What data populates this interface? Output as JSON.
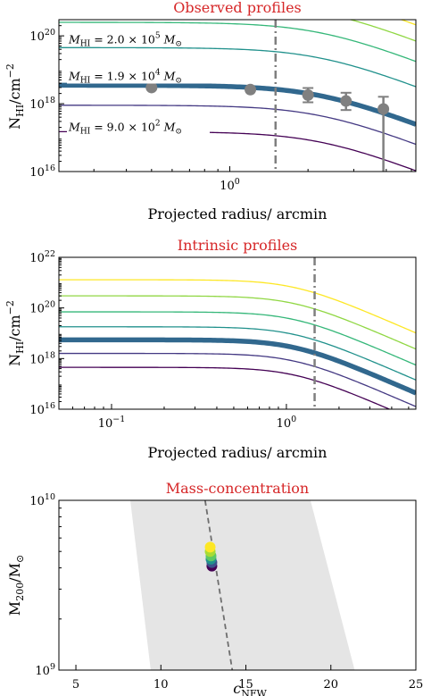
{
  "chart_data": [
    {
      "type": "line",
      "title": "Observed profiles",
      "xlabel": "Projected radius/ arcmin",
      "ylabel": "N_HI/cm^-2",
      "x_scale": "log",
      "y_scale": "log",
      "xlim": [
        0.22,
        5.2
      ],
      "ylim": [
        1e+16,
        3e+20
      ],
      "x_ticks": [
        {
          "value": 1,
          "label": "10^0"
        }
      ],
      "y_ticks": [
        {
          "value": 1e+16,
          "label": "10^16"
        },
        {
          "value": 1e+18,
          "label": "10^18"
        },
        {
          "value": 1e+20,
          "label": "10^20"
        }
      ],
      "annotations": [
        {
          "text": "M_HI = 2.0 × 10^5 M_⊙",
          "x": 0.24,
          "y": 6e+19
        },
        {
          "text": "M_HI = 1.9 × 10^4 M_⊙",
          "x": 0.24,
          "y": 5e+18
        },
        {
          "text": "M_HI = 9.0 × 10^2 M_⊙",
          "x": 0.24,
          "y": 1.6e+17
        }
      ],
      "vline": {
        "x": 1.5,
        "style": "dash-dot",
        "color": "#7f7f7f"
      },
      "series": [
        {
          "central": 3e+21,
          "rs": 2.2,
          "color": "#fde725",
          "width": 1.3
        },
        {
          "central": 1e+21,
          "rs": 2.2,
          "color": "#90d743",
          "width": 1.3
        },
        {
          "central": 2.5e+20,
          "rs": 2.2,
          "color": "#35b779",
          "width": 1.3
        },
        {
          "central": 4.5e+19,
          "rs": 2.2,
          "color": "#21918c",
          "width": 1.3
        },
        {
          "central": 3.5e+18,
          "rs": 2.2,
          "color": "#31688e",
          "width": 5.5
        },
        {
          "central": 9e+17,
          "rs": 2.2,
          "color": "#443983",
          "width": 1.3
        },
        {
          "central": 1.5e+17,
          "rs": 2.2,
          "color": "#440154",
          "width": 1.3
        }
      ],
      "points": [
        {
          "x": 0.5,
          "y": 3e+18,
          "yerr": [
            3e+18,
            3e+18
          ]
        },
        {
          "x": 1.2,
          "y": 2.6e+18,
          "yerr": [
            2.6e+18,
            2.6e+18
          ]
        },
        {
          "x": 2.0,
          "y": 1.8e+18,
          "yerr": [
            1.1e+18,
            2.9e+18
          ]
        },
        {
          "x": 2.8,
          "y": 1.2e+18,
          "yerr": [
            6.5e+17,
            2.1e+18
          ]
        },
        {
          "x": 3.9,
          "y": 7e+17,
          "yerr": [
            1e+16,
            1.6e+18
          ]
        }
      ]
    },
    {
      "type": "line",
      "title": "Intrinsic profiles",
      "xlabel": "Projected radius/ arcmin",
      "ylabel": "N_HI/cm^-2",
      "x_scale": "log",
      "y_scale": "log",
      "xlim": [
        0.05,
        5.5
      ],
      "ylim": [
        1e+16,
        1e+22
      ],
      "x_ticks": [
        {
          "value": 0.1,
          "label": "10^-1"
        },
        {
          "value": 1,
          "label": "10^0"
        }
      ],
      "y_ticks": [
        {
          "value": 1e+16,
          "label": "10^16"
        },
        {
          "value": 1e+18,
          "label": "10^18"
        },
        {
          "value": 1e+20,
          "label": "10^20"
        },
        {
          "value": 1e+22,
          "label": "10^22"
        }
      ],
      "vline": {
        "x": 1.45,
        "style": "dash-dot",
        "color": "#7f7f7f"
      },
      "series": [
        {
          "central": 1.3e+21,
          "rs": 1.1,
          "color": "#fde725",
          "width": 1.3
        },
        {
          "central": 3e+20,
          "rs": 1.1,
          "color": "#90d743",
          "width": 1.3
        },
        {
          "central": 7e+19,
          "rs": 1.1,
          "color": "#35b779",
          "width": 1.3
        },
        {
          "central": 1.8e+19,
          "rs": 1.1,
          "color": "#21918c",
          "width": 1.3
        },
        {
          "central": 5.5e+18,
          "rs": 1.1,
          "color": "#31688e",
          "width": 5.5
        },
        {
          "central": 1.6e+18,
          "rs": 1.1,
          "color": "#443983",
          "width": 1.3
        },
        {
          "central": 4.5e+17,
          "rs": 1.1,
          "color": "#440154",
          "width": 1.3
        }
      ]
    },
    {
      "type": "scatter",
      "title": "Mass-concentration",
      "xlabel": "c_NFW",
      "ylabel": "M_200/M_⊙",
      "x_scale": "linear",
      "y_scale": "log",
      "xlim": [
        4,
        25
      ],
      "ylim": [
        1000000000.0,
        10000000000.0
      ],
      "x_ticks": [
        {
          "value": 5,
          "label": "5"
        },
        {
          "value": 10,
          "label": "10"
        },
        {
          "value": 15,
          "label": "15"
        },
        {
          "value": 20,
          "label": "20"
        },
        {
          "value": 25,
          "label": "25"
        }
      ],
      "y_ticks": [
        {
          "value": 1000000000.0,
          "label": "10^9"
        },
        {
          "value": 10000000000.0,
          "label": "10^10"
        }
      ],
      "band": {
        "color": "#e5e5e5",
        "polygon": [
          [
            8.2,
            10000000000.0
          ],
          [
            18.8,
            10000000000.0
          ],
          [
            21.4,
            1000000000.0
          ],
          [
            9.4,
            1000000000.0
          ]
        ]
      },
      "relation_line": {
        "points": [
          [
            12.6,
            10000000000.0
          ],
          [
            14.2,
            1000000000.0
          ]
        ],
        "style": "dashed",
        "color": "#6e6e6e"
      },
      "points": [
        {
          "x": 13.0,
          "y": 4100000000.0,
          "color": "#440154"
        },
        {
          "x": 13.0,
          "y": 4300000000.0,
          "color": "#3b528b"
        },
        {
          "x": 12.95,
          "y": 4500000000.0,
          "color": "#21918c"
        },
        {
          "x": 12.95,
          "y": 4700000000.0,
          "color": "#5ec962"
        },
        {
          "x": 12.9,
          "y": 5000000000.0,
          "color": "#a8db34"
        },
        {
          "x": 12.9,
          "y": 5300000000.0,
          "color": "#fde725"
        }
      ]
    }
  ]
}
